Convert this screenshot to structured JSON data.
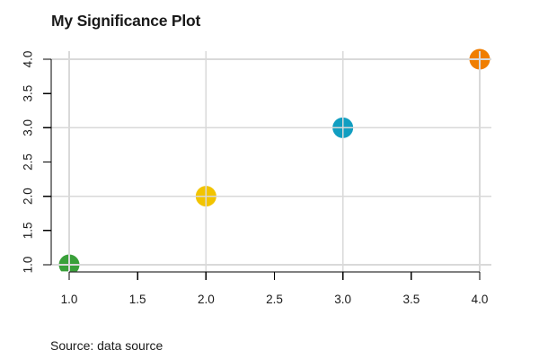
{
  "title": "My Significance Plot",
  "caption": "Source: data source",
  "chart_data": {
    "type": "scatter",
    "title": "My Significance Plot",
    "caption": "Source: data source",
    "xlabel": "",
    "ylabel": "",
    "xlim": [
      1.0,
      4.0
    ],
    "ylim": [
      1.0,
      4.0
    ],
    "x_ticks": [
      "1.0",
      "1.5",
      "2.0",
      "2.5",
      "3.0",
      "3.5",
      "4.0"
    ],
    "y_ticks": [
      "1.0",
      "1.5",
      "2.0",
      "2.5",
      "3.0",
      "3.5",
      "4.0"
    ],
    "x_tick_values": [
      1.0,
      1.5,
      2.0,
      2.5,
      3.0,
      3.5,
      4.0
    ],
    "y_tick_values": [
      1.0,
      1.5,
      2.0,
      2.5,
      3.0,
      3.5,
      4.0
    ],
    "y_tick_label_rotation_degrees": 90,
    "legend": "none",
    "points": [
      {
        "x": 1,
        "y": 1,
        "color": "#3AA03A",
        "color_name": "green"
      },
      {
        "x": 2,
        "y": 2,
        "color": "#F2C400",
        "color_name": "yellow"
      },
      {
        "x": 3,
        "y": 3,
        "color": "#119EC1",
        "color_name": "blue"
      },
      {
        "x": 4,
        "y": 4,
        "color": "#F07E00",
        "color_name": "orange"
      }
    ],
    "grid": {
      "x_values": [
        1,
        2,
        3,
        4
      ],
      "y_values": [
        1,
        2,
        3,
        4
      ],
      "color": "#D9D9D9",
      "drawn_on_top_of_points": true
    },
    "colors": {
      "axis": "#000000",
      "tick_label": "#1A1A1A",
      "title": "#1A1A1A",
      "caption": "#1A1A1A",
      "background": "#FFFFFF"
    }
  }
}
